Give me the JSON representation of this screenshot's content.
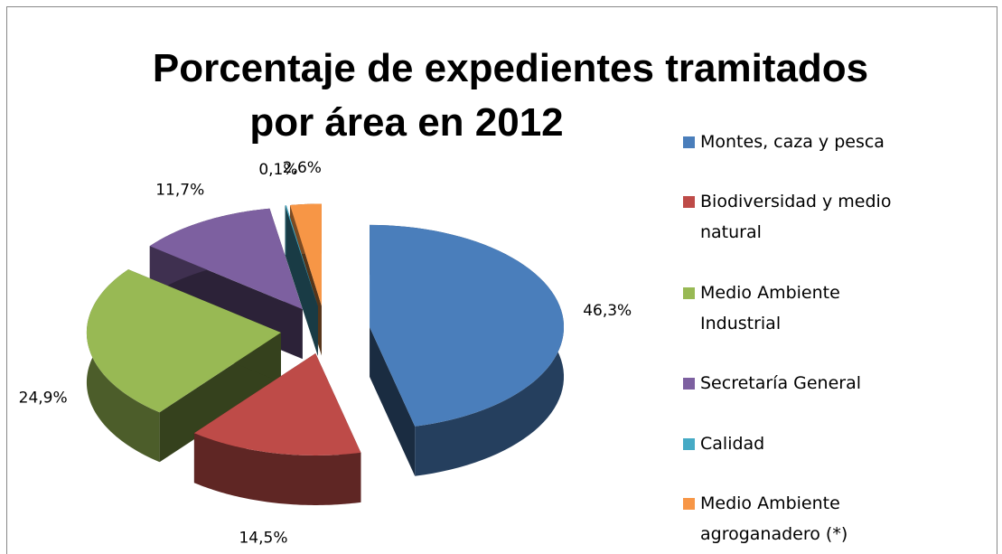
{
  "chart_data": {
    "type": "pie3d",
    "title": [
      "Porcentaje de expedientes tramitados",
      "por área en 2012"
    ],
    "categories": [
      "Montes, caza  y pesca",
      "Biodiversidad y medio natural",
      "Medio Ambiente Industrial",
      "Secretaría General",
      "Calidad",
      "Medio Ambiente agroganadero (*)"
    ],
    "values": [
      46.3,
      14.5,
      24.9,
      11.7,
      0.1,
      2.6
    ],
    "value_labels": [
      "46,3%",
      "14,5%",
      "24,9%",
      "11,7%",
      "0,1%",
      "2,6%"
    ],
    "colors": [
      "#4a7ebb",
      "#be4b48",
      "#98b954",
      "#7d60a0",
      "#46aac5",
      "#f79646"
    ],
    "legend": "right"
  }
}
